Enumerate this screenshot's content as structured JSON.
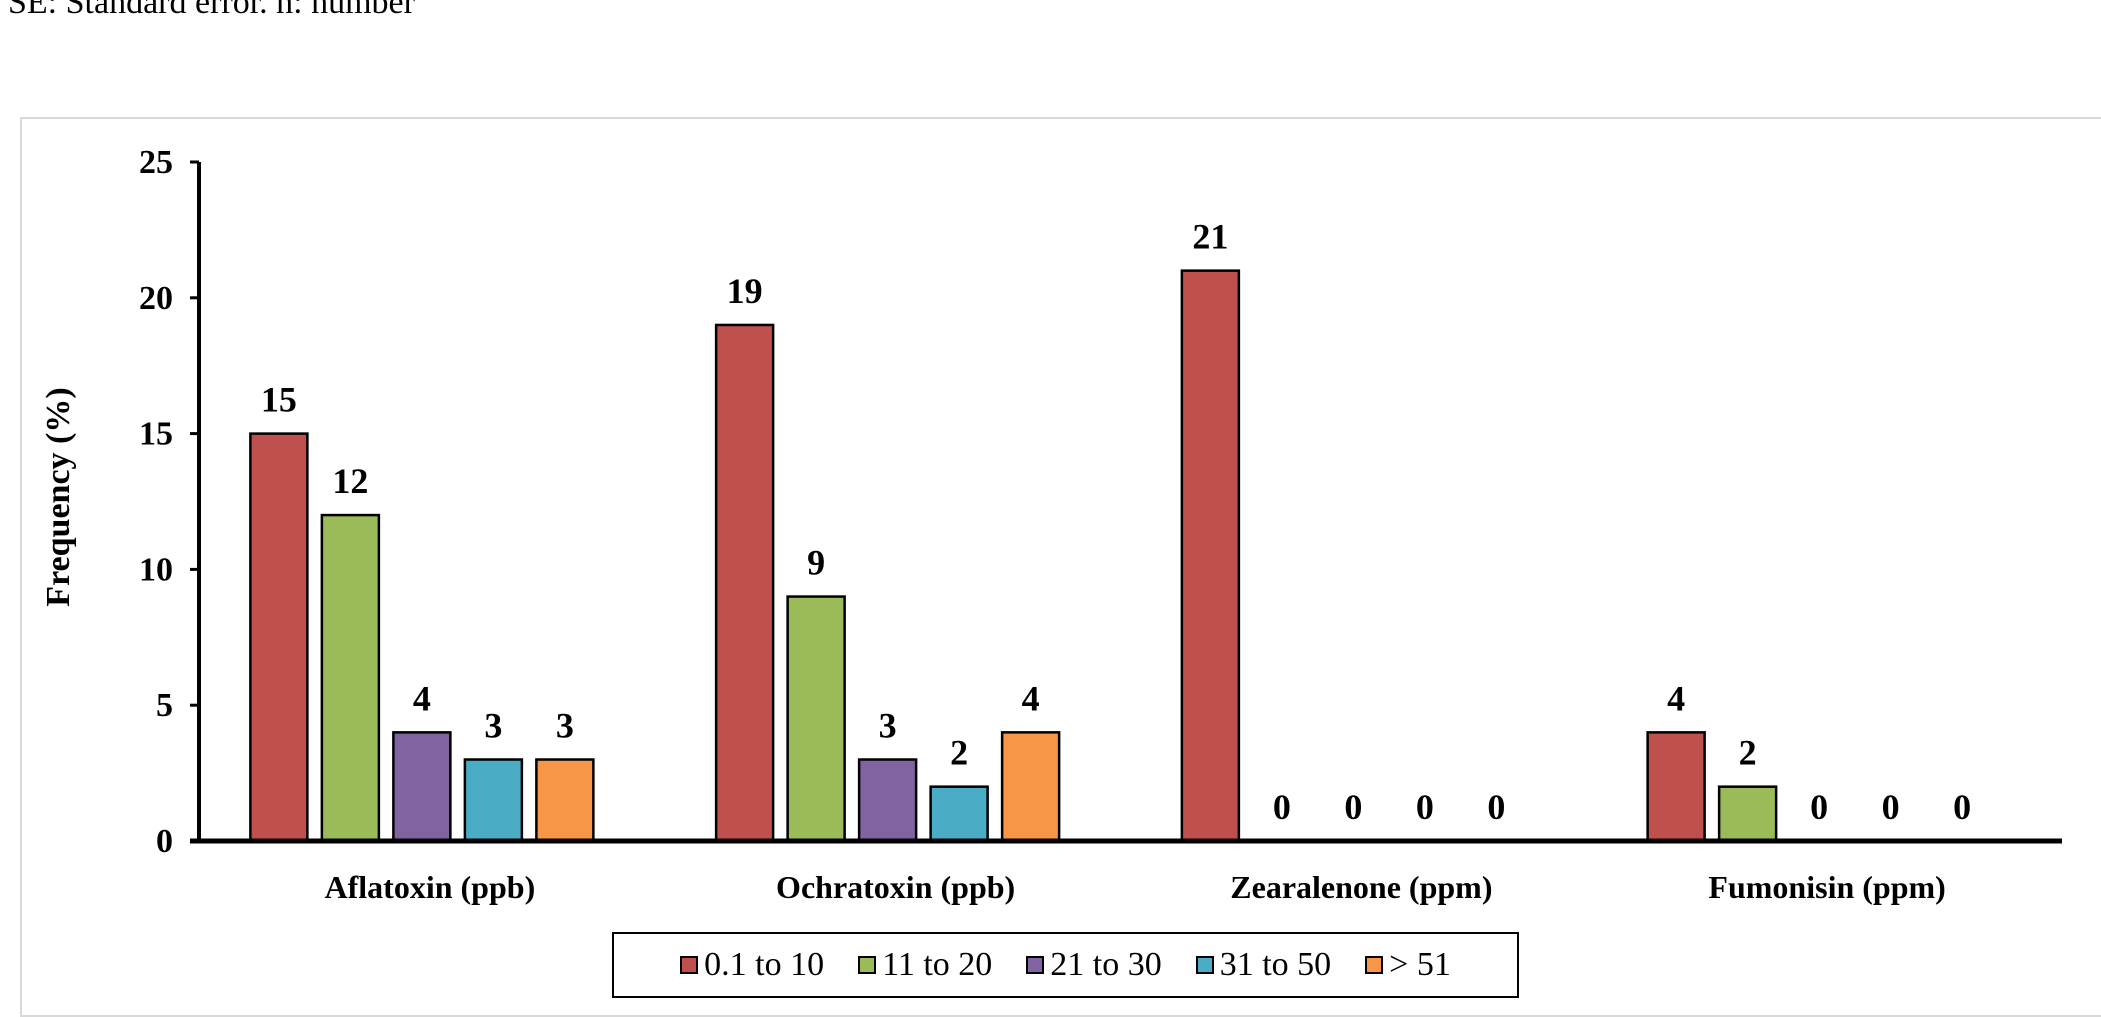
{
  "page": {
    "caption": "SE: Standard error. n: number"
  },
  "chart_data": {
    "type": "bar",
    "title": "",
    "xlabel": "",
    "ylabel": "Frequency (%)",
    "ylim": [
      0,
      25
    ],
    "yticks": [
      "0",
      "5",
      "10",
      "15",
      "20",
      "25"
    ],
    "grid": false,
    "legend_position": "bottom",
    "categories": [
      "Aflatoxin (ppb)",
      "Ochratoxin (ppb)",
      "Zearalenone (ppm)",
      "Fumonisin (ppm)"
    ],
    "series": [
      {
        "name": "0.1 to 10",
        "color": "#c0504d",
        "values": [
          15,
          19,
          21,
          4
        ]
      },
      {
        "name": "11 to 20",
        "color": "#9bbb59",
        "values": [
          12,
          9,
          0,
          2
        ]
      },
      {
        "name": "21 to 30",
        "color": "#8064a2",
        "values": [
          4,
          3,
          0,
          0
        ]
      },
      {
        "name": "31 to 50",
        "color": "#4bacc6",
        "values": [
          3,
          2,
          0,
          0
        ]
      },
      {
        "name": "> 51",
        "color": "#f79646",
        "values": [
          3,
          4,
          0,
          0
        ]
      }
    ]
  }
}
